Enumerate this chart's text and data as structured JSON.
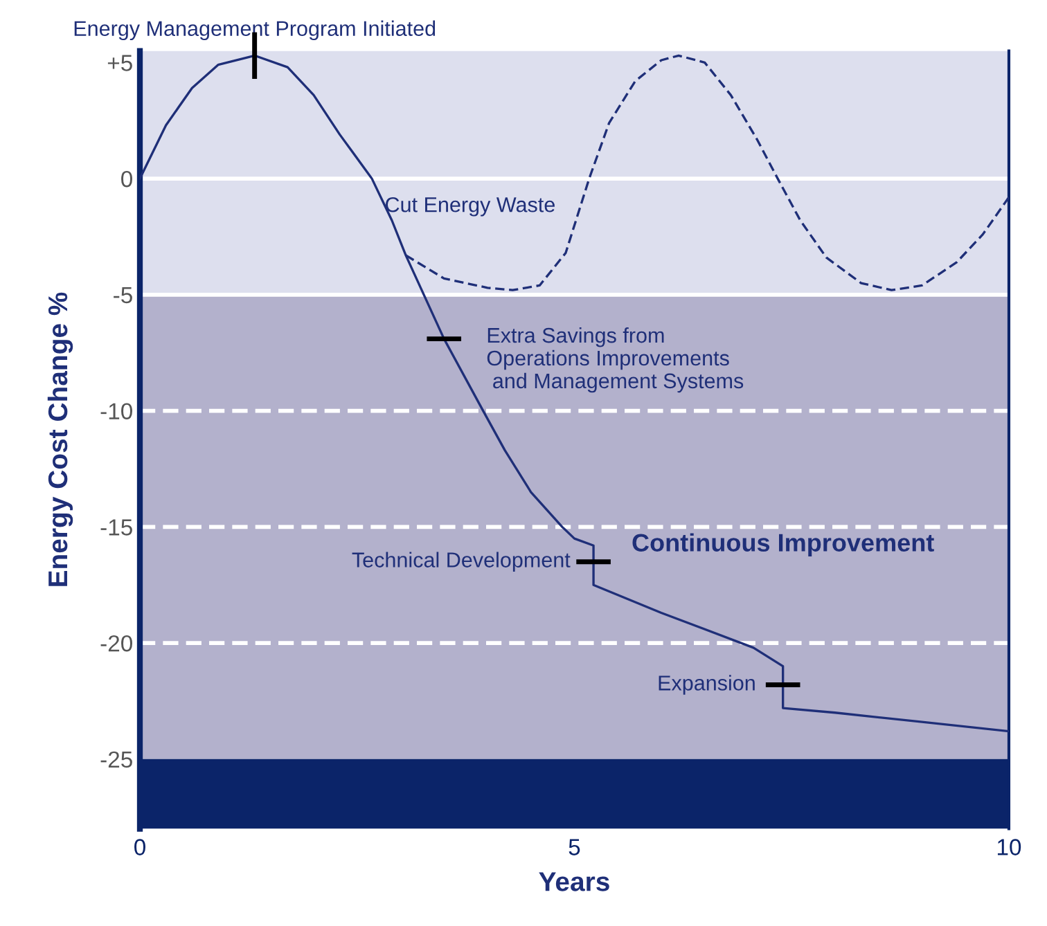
{
  "chart_data": {
    "type": "line",
    "xlabel": "Years",
    "ylabel": "Energy Cost Change %",
    "xlim": [
      0,
      10
    ],
    "xticks": [
      0,
      5,
      10
    ],
    "ylim": [
      -28,
      5.5
    ],
    "yticks": [
      {
        "value": 5,
        "label": "+5"
      },
      0,
      -5,
      -10,
      -15,
      -20,
      -25
    ],
    "series": [
      {
        "color": "#1f2f78",
        "line_style": "solid",
        "x": [
          0,
          0.3,
          0.6,
          0.9,
          1.32,
          1.7,
          2.0,
          2.3,
          2.67,
          2.9,
          3.06,
          3.5,
          3.95,
          4.2,
          4.5,
          4.86,
          5.0,
          5.22,
          5.22,
          6.0,
          7.06,
          7.4,
          7.4,
          8.0,
          9.0,
          10
        ],
        "values": [
          0,
          2.3,
          3.9,
          4.9,
          5.3,
          4.8,
          3.6,
          1.9,
          0,
          -1.8,
          -3.3,
          -6.9,
          -10,
          -11.7,
          -13.5,
          -15,
          -15.5,
          -15.8,
          -17.5,
          -18.7,
          -20.2,
          -21,
          -22.8,
          -23.0,
          -23.4,
          -23.8
        ]
      },
      {
        "color": "#1f2f78",
        "line_style": "dashed",
        "x": [
          3.06,
          3.5,
          4.0,
          4.29,
          4.6,
          4.9,
          5.17,
          5.4,
          5.7,
          6.0,
          6.2,
          6.5,
          6.8,
          7.1,
          7.34,
          7.6,
          7.9,
          8.3,
          8.65,
          9.0,
          9.4,
          9.7,
          10
        ],
        "values": [
          -3.3,
          -4.3,
          -4.7,
          -4.8,
          -4.6,
          -3.2,
          0,
          2.4,
          4.2,
          5.1,
          5.3,
          5.0,
          3.6,
          1.7,
          0,
          -1.8,
          -3.4,
          -4.5,
          -4.8,
          -4.6,
          -3.6,
          -2.4,
          -0.8
        ]
      }
    ],
    "bands": [
      {
        "axis": "y",
        "from": -5,
        "to": 5.5,
        "color": "#dddfee"
      },
      {
        "axis": "y",
        "from": -25,
        "to": -5,
        "color": "#b3b1cc"
      },
      {
        "axis": "y",
        "from": -28,
        "to": -25,
        "color": "#0b2469"
      }
    ],
    "ref_lines": [
      {
        "axis": "y",
        "value": 0,
        "color": "#ffffff",
        "line_style": "solid"
      },
      {
        "axis": "y",
        "value": -5,
        "color": "#ffffff",
        "line_style": "solid"
      },
      {
        "axis": "y",
        "value": -10,
        "color": "#ffffff",
        "line_style": "dashed"
      },
      {
        "axis": "y",
        "value": -15,
        "color": "#ffffff",
        "line_style": "dashed"
      },
      {
        "axis": "y",
        "value": -20,
        "color": "#ffffff",
        "line_style": "dashed"
      }
    ],
    "annotations": [
      {
        "text": "Energy Management Program Initiated",
        "x": 1.32,
        "y": 5.3
      },
      {
        "text": "Extra Savings from\nOperations Improvements\n and Management Systems",
        "x": 3.5,
        "y": -6.9
      },
      {
        "text": "Technical Development",
        "x": 5.22,
        "y": -16.5
      },
      {
        "text": "Expansion",
        "x": 7.4,
        "y": -21.8
      },
      "Cut Energy Waste",
      "Continuous Improvement"
    ]
  }
}
